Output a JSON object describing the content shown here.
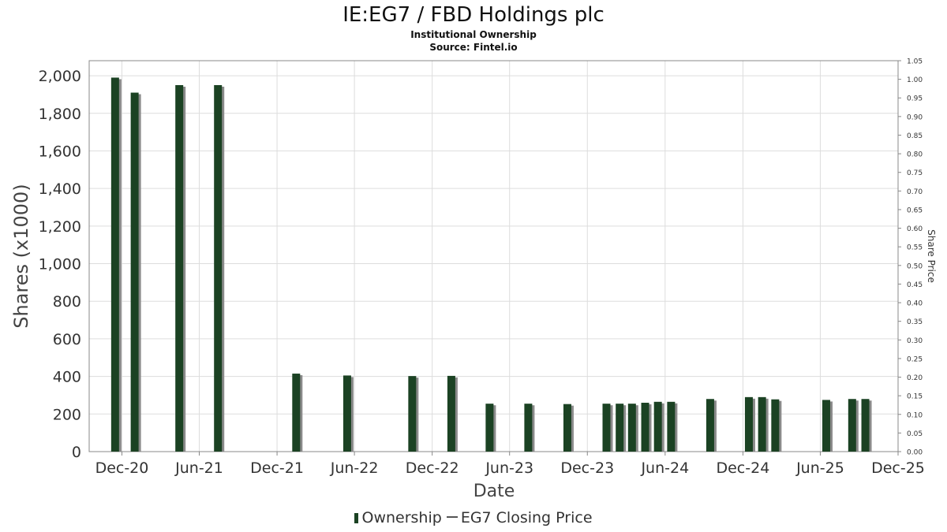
{
  "chart_data": {
    "type": "bar",
    "title": "IE:EG7 / FBD Holdings plc",
    "subtitles": [
      "Institutional Ownership",
      "Source: Fintel.io"
    ],
    "xlabel": "Date",
    "ylabel": "Shares (x1000)",
    "y2label": "Share Price",
    "ylim": [
      0,
      2080
    ],
    "y2lim": [
      0,
      1.05
    ],
    "yticks": [
      "0",
      "200",
      "400",
      "600",
      "800",
      "1,000",
      "1,200",
      "1,400",
      "1,600",
      "1,800",
      "2,000"
    ],
    "y2ticks": [
      "0.00",
      "0.05",
      "0.10",
      "0.15",
      "0.20",
      "0.25",
      "0.30",
      "0.35",
      "0.40",
      "0.45",
      "0.50",
      "0.55",
      "0.60",
      "0.65",
      "0.70",
      "0.75",
      "0.80",
      "0.85",
      "0.90",
      "0.95",
      "1.00",
      "1.05"
    ],
    "xticks": [
      {
        "date": "2020-12-01",
        "label": "Dec-20"
      },
      {
        "date": "2021-06-01",
        "label": "Jun-21"
      },
      {
        "date": "2021-12-01",
        "label": "Dec-21"
      },
      {
        "date": "2022-06-01",
        "label": "Jun-22"
      },
      {
        "date": "2022-12-01",
        "label": "Dec-22"
      },
      {
        "date": "2023-06-01",
        "label": "Jun-23"
      },
      {
        "date": "2023-12-01",
        "label": "Dec-23"
      },
      {
        "date": "2024-06-01",
        "label": "Jun-24"
      },
      {
        "date": "2024-12-01",
        "label": "Dec-24"
      },
      {
        "date": "2025-06-01",
        "label": "Jun-25"
      },
      {
        "date": "2025-12-01",
        "label": "Dec-25"
      }
    ],
    "xlim": [
      "2020-09-15",
      "2025-12-01"
    ],
    "grid": true,
    "legend_position": "bottom",
    "series": [
      {
        "name": "Ownership",
        "color": "#1b4223",
        "points": [
          {
            "date": "2020-11-15",
            "value": 1990
          },
          {
            "date": "2020-12-31",
            "value": 1910
          },
          {
            "date": "2021-04-15",
            "value": 1950
          },
          {
            "date": "2021-07-15",
            "value": 1950
          },
          {
            "date": "2022-01-15",
            "value": 415
          },
          {
            "date": "2022-05-15",
            "value": 405
          },
          {
            "date": "2022-10-15",
            "value": 402
          },
          {
            "date": "2023-01-15",
            "value": 403
          },
          {
            "date": "2023-04-15",
            "value": 255
          },
          {
            "date": "2023-07-15",
            "value": 255
          },
          {
            "date": "2023-10-15",
            "value": 253
          },
          {
            "date": "2024-01-15",
            "value": 255
          },
          {
            "date": "2024-02-15",
            "value": 255
          },
          {
            "date": "2024-03-15",
            "value": 255
          },
          {
            "date": "2024-04-15",
            "value": 260
          },
          {
            "date": "2024-05-15",
            "value": 265
          },
          {
            "date": "2024-06-15",
            "value": 265
          },
          {
            "date": "2024-09-15",
            "value": 280
          },
          {
            "date": "2024-12-15",
            "value": 290
          },
          {
            "date": "2025-01-15",
            "value": 290
          },
          {
            "date": "2025-02-15",
            "value": 278
          },
          {
            "date": "2025-06-15",
            "value": 275
          },
          {
            "date": "2025-08-15",
            "value": 280
          },
          {
            "date": "2025-09-15",
            "value": 280
          }
        ]
      },
      {
        "name": "EG7 Closing Price",
        "color": "#555555",
        "points": []
      }
    ]
  }
}
